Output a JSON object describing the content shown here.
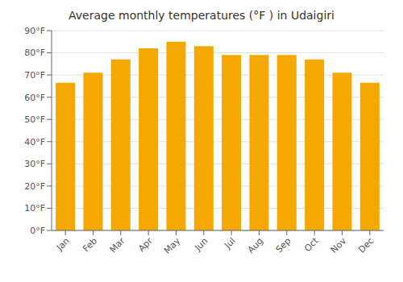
{
  "chart_data": {
    "type": "bar",
    "title": "Average monthly temperatures (°F ) in Udaigiri",
    "categories": [
      "Jan",
      "Feb",
      "Mar",
      "Apr",
      "May",
      "Jun",
      "Jul",
      "Aug",
      "Sep",
      "Oct",
      "Nov",
      "Dec"
    ],
    "values": [
      66.5,
      71.0,
      77.0,
      82.0,
      85.0,
      83.0,
      79.0,
      79.0,
      79.0,
      77.0,
      71.0,
      66.5
    ],
    "color": "#F5A800",
    "ylim": [
      0,
      90
    ],
    "yticks": [
      {
        "value": 0,
        "label": "0°F"
      },
      {
        "value": 10,
        "label": "10°F"
      },
      {
        "value": 20,
        "label": "20°F"
      },
      {
        "value": 30,
        "label": "30°F"
      },
      {
        "value": 40,
        "label": "40°F"
      },
      {
        "value": 50,
        "label": "50°F"
      },
      {
        "value": 60,
        "label": "60°F"
      },
      {
        "value": 70,
        "label": "70°F"
      },
      {
        "value": 80,
        "label": "80°F"
      },
      {
        "value": 90,
        "label": "90°F"
      }
    ],
    "grid": true
  }
}
